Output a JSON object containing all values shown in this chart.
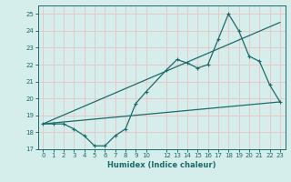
{
  "xlabel": "Humidex (Indice chaleur)",
  "bg_color": "#d6eeeb",
  "grid_color": "#e8c8c8",
  "line_color": "#1a6b6b",
  "xlim": [
    -0.5,
    23.5
  ],
  "ylim": [
    17,
    25.5
  ],
  "xticks": [
    0,
    1,
    2,
    3,
    4,
    5,
    6,
    7,
    8,
    9,
    10,
    12,
    13,
    14,
    15,
    16,
    17,
    18,
    19,
    20,
    21,
    22,
    23
  ],
  "yticks": [
    17,
    18,
    19,
    20,
    21,
    22,
    23,
    24,
    25
  ],
  "series1_x": [
    0,
    1,
    2,
    3,
    4,
    5,
    6,
    7,
    8,
    9,
    10,
    12,
    13,
    14,
    15,
    16,
    17,
    18,
    19,
    20,
    21,
    22,
    23
  ],
  "series1_y": [
    18.5,
    18.5,
    18.5,
    18.2,
    17.8,
    17.2,
    17.2,
    17.8,
    18.2,
    19.7,
    20.4,
    21.7,
    22.3,
    22.1,
    21.8,
    22.0,
    23.5,
    25.0,
    24.0,
    22.5,
    22.2,
    20.8,
    19.8
  ],
  "reg_line1_x": [
    0,
    23
  ],
  "reg_line1_y": [
    18.5,
    19.8
  ],
  "reg_line2_x": [
    0,
    23
  ],
  "reg_line2_y": [
    18.5,
    24.5
  ]
}
